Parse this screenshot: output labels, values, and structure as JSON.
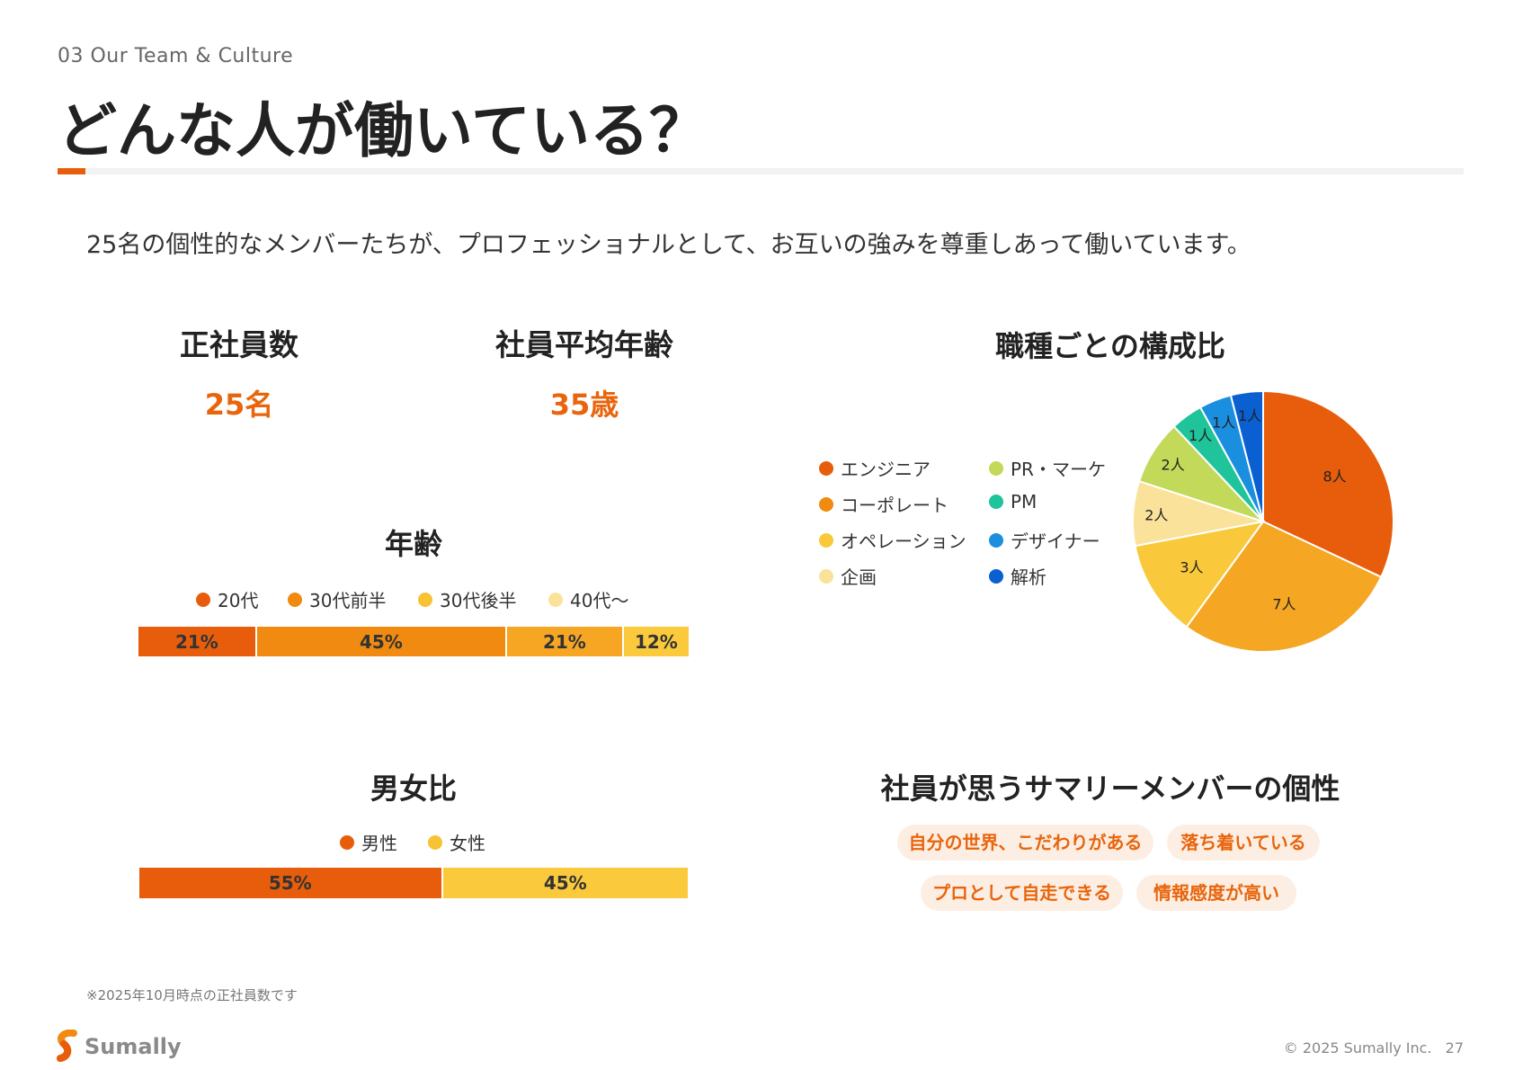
{
  "header": {
    "section_label": "03 Our Team & Culture",
    "title": "どんな人が働いている？",
    "accent_color": "#e85d0c"
  },
  "intro": "25名の個性的なメンバーたちが、プロフェッショナルとして、お互いの強みを尊重しあって働いています。",
  "stats": {
    "headcount_label": "正社員数",
    "headcount_value": "25名",
    "avg_age_label": "社員平均年齢",
    "avg_age_value": "35歳"
  },
  "age_chart": {
    "heading": "年齢",
    "legend": [
      {
        "label": "20代",
        "color": "#e85d0c"
      },
      {
        "label": "30代前半",
        "color": "#f08a10"
      },
      {
        "label": "30代後半",
        "color": "#f7c233"
      },
      {
        "label": "40代〜",
        "color": "#fbe29a"
      }
    ],
    "segments": [
      {
        "label": "21%",
        "value": 21,
        "color": "#e85d0c"
      },
      {
        "label": "45%",
        "value": 45,
        "color": "#f08a10"
      },
      {
        "label": "21%",
        "value": 21,
        "color": "#f7a623"
      },
      {
        "label": "12%",
        "value": 12,
        "color": "#fbca3c"
      }
    ]
  },
  "gender_chart": {
    "heading": "男女比",
    "legend": [
      {
        "label": "男性",
        "color": "#e85d0c"
      },
      {
        "label": "女性",
        "color": "#f7c233"
      }
    ],
    "segments": [
      {
        "label": "55%",
        "value": 55,
        "color": "#e85d0c"
      },
      {
        "label": "45%",
        "value": 45,
        "color": "#fbca3c"
      }
    ]
  },
  "chart_data": {
    "type": "pie",
    "title": "職種ごとの構成比",
    "categories": [
      "エンジニア",
      "コーポレート",
      "オペレーション",
      "企画",
      "PR・マーケ",
      "PM",
      "デザイナー",
      "解析"
    ],
    "values": [
      8,
      7,
      3,
      2,
      2,
      1,
      1,
      1
    ],
    "value_labels": [
      "8人",
      "7人",
      "3人",
      "2人",
      "2人",
      "1人",
      "1人",
      "1人"
    ],
    "colors": [
      "#e85d0c",
      "#f5a623",
      "#f9c93b",
      "#fbe29a",
      "#c2d95a",
      "#1fc49a",
      "#1a8fe0",
      "#0a5fd1"
    ]
  },
  "personality": {
    "heading": "社員が思うサマリーメンバーの個性",
    "tags": [
      "自分の世界、こだわりがある",
      "落ち着いている",
      "プロとして自走できる",
      "情報感度が高い"
    ]
  },
  "footer": {
    "footnote": "※2025年10月時点の正社員数です",
    "logo_text": "Sumally",
    "copyright": "© 2025 Sumally Inc.",
    "page_number": "27"
  }
}
